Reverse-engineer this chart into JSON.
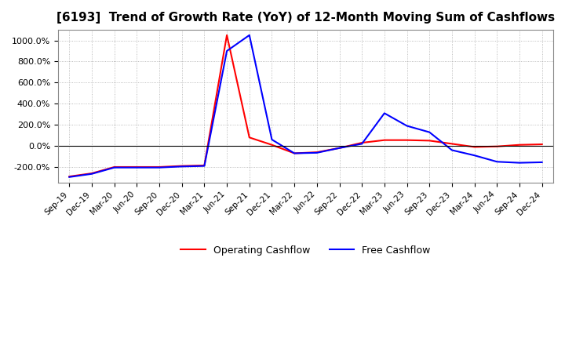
{
  "title": "[6193]  Trend of Growth Rate (YoY) of 12-Month Moving Sum of Cashflows",
  "title_fontsize": 11,
  "background_color": "#ffffff",
  "grid_color": "#aaaaaa",
  "ylim": [
    -350,
    1100
  ],
  "yticks": [
    -200,
    0,
    200,
    400,
    600,
    800,
    1000
  ],
  "x_labels": [
    "Sep-19",
    "Dec-19",
    "Mar-20",
    "Jun-20",
    "Sep-20",
    "Dec-20",
    "Mar-21",
    "Jun-21",
    "Sep-21",
    "Dec-21",
    "Mar-22",
    "Jun-22",
    "Sep-22",
    "Dec-22",
    "Mar-23",
    "Jun-23",
    "Sep-23",
    "Dec-23",
    "Mar-24",
    "Jun-24",
    "Sep-24",
    "Dec-24"
  ],
  "operating_cashflow": [
    -290,
    -260,
    -200,
    -200,
    -200,
    -190,
    -185,
    1050,
    80,
    10,
    -70,
    -60,
    -20,
    30,
    55,
    55,
    50,
    20,
    -10,
    -5,
    10,
    15
  ],
  "free_cashflow": [
    -295,
    -265,
    -205,
    -205,
    -205,
    -195,
    -190,
    900,
    1050,
    60,
    -70,
    -65,
    -20,
    20,
    310,
    190,
    130,
    -40,
    -90,
    -150,
    -160,
    -155
  ],
  "op_color": "#ff0000",
  "fc_color": "#0000ff",
  "legend_op": "Operating Cashflow",
  "legend_fc": "Free Cashflow"
}
